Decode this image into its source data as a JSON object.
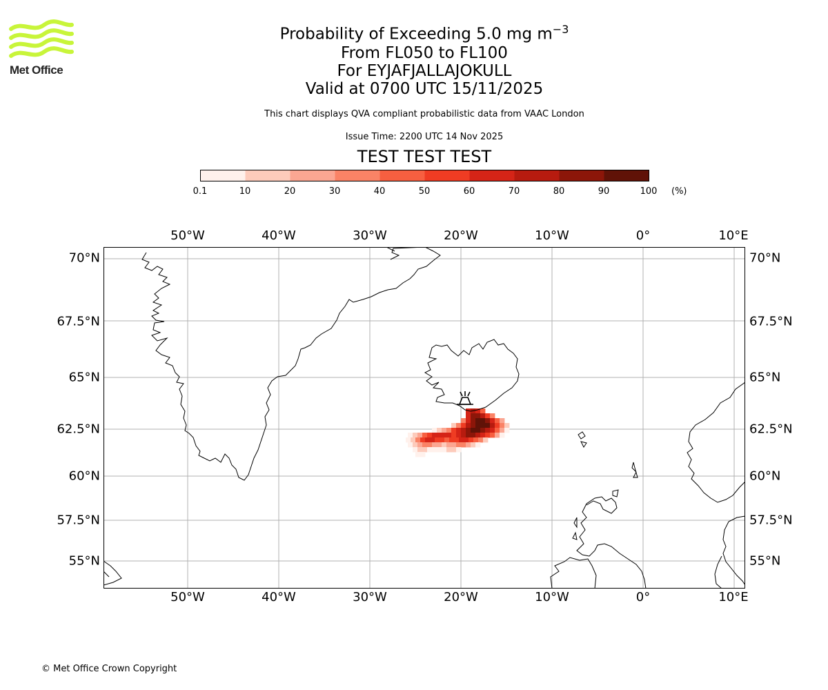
{
  "header": {
    "logo_text": "Met Office",
    "title_prefix": "Probability of Exceeding 5.0 mg m",
    "title_superscript": "−3",
    "flight_levels": "From FL050 to FL100",
    "volcano": "For EYJAFJALLAJOKULL",
    "valid_time": "Valid at 0700 UTC 15/11/2025",
    "disclaimer": "This chart displays QVA compliant probabilistic data from VAAC London",
    "issue_time": "Issue Time: 2200 UTC 14 Nov 2025",
    "test_banner": "TEST TEST TEST"
  },
  "colors": {
    "logo_green": "#c8f53a",
    "test_banner": "#e00000",
    "grid": "#b0b0b0",
    "coastline": "#000000",
    "colorbar": [
      "#fff1ec",
      "#fdcbbb",
      "#fba692",
      "#fa8366",
      "#f75f40",
      "#ef3c23",
      "#d52417",
      "#b71b0f",
      "#8c1609",
      "#601207"
    ]
  },
  "colorbar": {
    "ticks": [
      "0.1",
      "10",
      "20",
      "30",
      "40",
      "50",
      "60",
      "70",
      "80",
      "90",
      "100"
    ],
    "unit": "(%)"
  },
  "map": {
    "lon_labels": [
      "50°W",
      "40°W",
      "30°W",
      "20°W",
      "10°W",
      "0°",
      "10°E"
    ],
    "lat_labels": [
      "70°N",
      "67.5°N",
      "65°N",
      "62.5°N",
      "60°N",
      "57.5°N",
      "55°N"
    ],
    "volcano_icon": "volcano-icon"
  },
  "footer": {
    "copyright": "© Met Office Crown Copyright"
  }
}
